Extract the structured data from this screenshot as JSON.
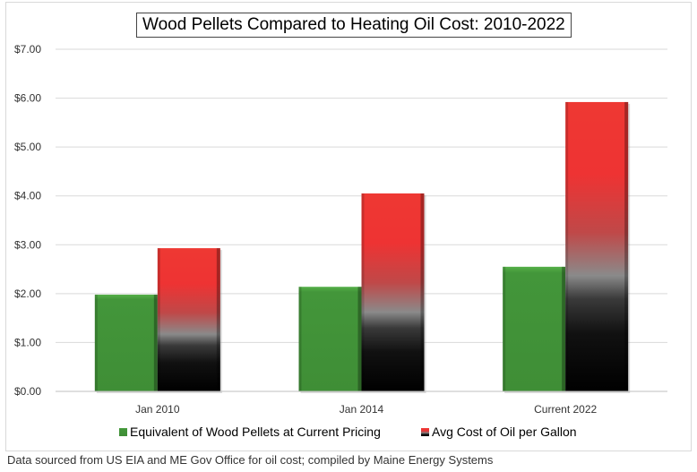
{
  "chart_data": {
    "type": "bar",
    "title": "Wood Pellets Compared to Heating Oil Cost:  2010-2022",
    "categories": [
      "Jan 2010",
      "Jan 2014",
      "Current 2022"
    ],
    "series": [
      {
        "name": "Equivalent of Wood Pellets at Current Pricing",
        "values": [
          1.98,
          2.14,
          2.55
        ],
        "color": "#43963a"
      },
      {
        "name": "Avg Cost of Oil per Gallon",
        "values": [
          2.93,
          4.05,
          5.92
        ],
        "color": "#ee3833"
      }
    ],
    "ylim": [
      0,
      7
    ],
    "yticks": [
      "$0.00",
      "$1.00",
      "$2.00",
      "$3.00",
      "$4.00",
      "$5.00",
      "$6.00",
      "$7.00"
    ],
    "grid": true,
    "legend": "bottom",
    "xlabel": "",
    "ylabel": ""
  },
  "source": "Data sourced from US EIA and ME Gov Office for oil cost; compiled by Maine Energy Systems"
}
